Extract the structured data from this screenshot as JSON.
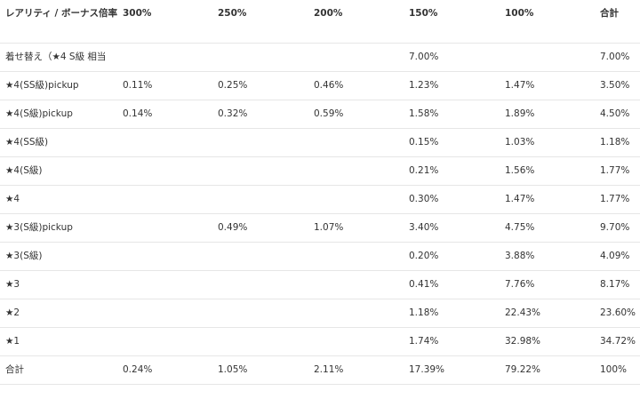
{
  "table": {
    "headers": [
      "レアリティ / ボーナス倍率",
      "300%",
      "250%",
      "200%",
      "150%",
      "100%",
      "合計"
    ],
    "rows": [
      [
        "着せ替え（★4 S級 相当",
        "",
        "",
        "",
        "7.00%",
        "",
        "7.00%"
      ],
      [
        "★4(SS級)pickup",
        "0.11%",
        "0.25%",
        "0.46%",
        "1.23%",
        "1.47%",
        "3.50%"
      ],
      [
        "★4(S級)pickup",
        "0.14%",
        "0.32%",
        "0.59%",
        "1.58%",
        "1.89%",
        "4.50%"
      ],
      [
        "★4(SS級)",
        "",
        "",
        "",
        "0.15%",
        "1.03%",
        "1.18%"
      ],
      [
        "★4(S級)",
        "",
        "",
        "",
        "0.21%",
        "1.56%",
        "1.77%"
      ],
      [
        "★4",
        "",
        "",
        "",
        "0.30%",
        "1.47%",
        "1.77%"
      ],
      [
        "★3(S級)pickup",
        "",
        "0.49%",
        "1.07%",
        "3.40%",
        "4.75%",
        "9.70%"
      ],
      [
        "★3(S級)",
        "",
        "",
        "",
        "0.20%",
        "3.88%",
        "4.09%"
      ],
      [
        "★3",
        "",
        "",
        "",
        "0.41%",
        "7.76%",
        "8.17%"
      ],
      [
        "★2",
        "",
        "",
        "",
        "1.18%",
        "22.43%",
        "23.60%"
      ],
      [
        "★1",
        "",
        "",
        "",
        "1.74%",
        "32.98%",
        "34.72%"
      ],
      [
        "合計",
        "0.24%",
        "1.05%",
        "2.11%",
        "17.39%",
        "79.22%",
        "100%"
      ]
    ]
  }
}
